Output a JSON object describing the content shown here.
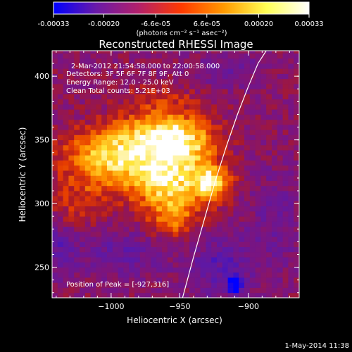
{
  "chart_data": {
    "type": "heatmap",
    "title": "Reconstructed RHESSI Image",
    "colorbar": {
      "ticks": [
        "-0.00033",
        "-0.00020",
        "-6.6e-05",
        "6.6e-05",
        "0.00020",
        "0.00033"
      ],
      "tick_values": [
        -0.00033,
        -0.0002,
        -6.6e-05,
        6.6e-05,
        0.0002,
        0.00033
      ],
      "range": [
        -0.00033,
        0.00033
      ],
      "unit_label": "(photons cm⁻² s⁻¹ asec⁻²)",
      "colors": [
        "#0000ff",
        "#6a1aa8",
        "#b3206a",
        "#ff3a00",
        "#ff9a00",
        "#ffff55",
        "#ffffff"
      ]
    },
    "xlabel": "Heliocentric X (arcsec)",
    "ylabel": "Heliocentric Y (arcsec)",
    "xlim": [
      -1043,
      -863
    ],
    "ylim": [
      226,
      420
    ],
    "xticks": [
      -1000,
      -950,
      -900
    ],
    "yticks": [
      250,
      300,
      350,
      400
    ],
    "xtick_labels": [
      "−1000",
      "−950",
      "−900"
    ],
    "ytick_labels": [
      "250",
      "300",
      "350",
      "400"
    ],
    "limb_curve": {
      "x": [
        -948,
        -940,
        -932,
        -924,
        -916,
        -908,
        -900,
        -893,
        -887
      ],
      "y": [
        226,
        258,
        288,
        318,
        345,
        370,
        392,
        410,
        420
      ]
    },
    "peak": {
      "x": -927,
      "y": 316
    },
    "blobs": [
      {
        "x": -1005,
        "y": 340,
        "sx": 24,
        "sy": 14,
        "v": 0.00021
      },
      {
        "x": -985,
        "y": 325,
        "sx": 26,
        "sy": 18,
        "v": 0.00017
      },
      {
        "x": -965,
        "y": 355,
        "sx": 22,
        "sy": 14,
        "v": 0.00027
      },
      {
        "x": -945,
        "y": 345,
        "sx": 16,
        "sy": 14,
        "v": 0.0002
      },
      {
        "x": -958,
        "y": 318,
        "sx": 16,
        "sy": 14,
        "v": 0.00022
      },
      {
        "x": -927,
        "y": 316,
        "sx": 10,
        "sy": 10,
        "v": 0.00033
      },
      {
        "x": -955,
        "y": 290,
        "sx": 14,
        "sy": 14,
        "v": 0.0002
      },
      {
        "x": -1025,
        "y": 300,
        "sx": 14,
        "sy": 16,
        "v": 0.0001
      },
      {
        "x": -965,
        "y": 385,
        "sx": 20,
        "sy": 8,
        "v": 8e-05
      },
      {
        "x": -1040,
        "y": 265,
        "sx": 12,
        "sy": 16,
        "v": -0.00012
      },
      {
        "x": -990,
        "y": 262,
        "sx": 22,
        "sy": 14,
        "v": -0.00011
      },
      {
        "x": -920,
        "y": 250,
        "sx": 18,
        "sy": 18,
        "v": -0.00013
      },
      {
        "x": -880,
        "y": 285,
        "sx": 14,
        "sy": 30,
        "v": -8e-05
      },
      {
        "x": -915,
        "y": 405,
        "sx": 20,
        "sy": 10,
        "v": -8e-05
      }
    ],
    "blue_spot": {
      "x": -910,
      "y": 236,
      "v": -0.0003
    }
  },
  "annotations": {
    "time_range": "2-Mar-2012 21:54:58.000 to 22:00:58.000",
    "detectors": "Detectors: 3F 5F 6F 7F 8F 9F, Att 0",
    "energy": "Energy Range: 12.0 - 25.0 keV",
    "clean": "Clean    Total counts: 5.21E+03",
    "peak": "Position of Peak = [-927,316]"
  },
  "footer_date": "1-May-2014 11:38"
}
